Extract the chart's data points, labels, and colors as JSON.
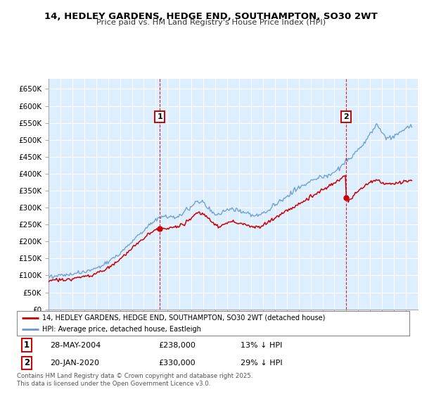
{
  "title": "14, HEDLEY GARDENS, HEDGE END, SOUTHAMPTON, SO30 2WT",
  "subtitle": "Price paid vs. HM Land Registry's House Price Index (HPI)",
  "ylim": [
    0,
    680000
  ],
  "yticks": [
    0,
    50000,
    100000,
    150000,
    200000,
    250000,
    300000,
    350000,
    400000,
    450000,
    500000,
    550000,
    600000,
    650000
  ],
  "ytick_labels": [
    "£0",
    "£50K",
    "£100K",
    "£150K",
    "£200K",
    "£250K",
    "£300K",
    "£350K",
    "£400K",
    "£450K",
    "£500K",
    "£550K",
    "£600K",
    "£650K"
  ],
  "background_color": "#ffffff",
  "plot_bg_color": "#ddeeff",
  "grid_color": "#c8d8e8",
  "red_color": "#cc0000",
  "blue_color": "#6699cc",
  "sale1_date": "28-MAY-2004",
  "sale1_price": "£238,000",
  "sale1_hpi": "13% ↓ HPI",
  "sale2_date": "20-JAN-2020",
  "sale2_price": "£330,000",
  "sale2_hpi": "29% ↓ HPI",
  "legend1": "14, HEDLEY GARDENS, HEDGE END, SOUTHAMPTON, SO30 2WT (detached house)",
  "legend2": "HPI: Average price, detached house, Eastleigh",
  "footnote": "Contains HM Land Registry data © Crown copyright and database right 2025.\nThis data is licensed under the Open Government Licence v3.0.",
  "xlim_start": 1995.0,
  "xlim_end": 2026.0,
  "hpi_keypoints": [
    [
      1995.0,
      97000
    ],
    [
      1996.0,
      100000
    ],
    [
      1997.0,
      103000
    ],
    [
      1998.0,
      110000
    ],
    [
      1999.0,
      120000
    ],
    [
      2000.0,
      140000
    ],
    [
      2001.0,
      165000
    ],
    [
      2002.0,
      200000
    ],
    [
      2003.0,
      235000
    ],
    [
      2004.0,
      265000
    ],
    [
      2004.5,
      275000
    ],
    [
      2005.0,
      272000
    ],
    [
      2005.5,
      270000
    ],
    [
      2006.0,
      278000
    ],
    [
      2006.5,
      288000
    ],
    [
      2007.0,
      305000
    ],
    [
      2007.5,
      320000
    ],
    [
      2008.0,
      315000
    ],
    [
      2008.5,
      295000
    ],
    [
      2009.0,
      278000
    ],
    [
      2009.5,
      285000
    ],
    [
      2010.0,
      292000
    ],
    [
      2010.5,
      295000
    ],
    [
      2011.0,
      290000
    ],
    [
      2011.5,
      285000
    ],
    [
      2012.0,
      280000
    ],
    [
      2012.5,
      278000
    ],
    [
      2013.0,
      282000
    ],
    [
      2013.5,
      292000
    ],
    [
      2014.0,
      308000
    ],
    [
      2014.5,
      322000
    ],
    [
      2015.0,
      335000
    ],
    [
      2015.5,
      345000
    ],
    [
      2016.0,
      358000
    ],
    [
      2016.5,
      368000
    ],
    [
      2017.0,
      378000
    ],
    [
      2017.5,
      385000
    ],
    [
      2018.0,
      390000
    ],
    [
      2018.5,
      395000
    ],
    [
      2019.0,
      405000
    ],
    [
      2019.5,
      420000
    ],
    [
      2020.0,
      440000
    ],
    [
      2020.3,
      445000
    ],
    [
      2020.5,
      450000
    ],
    [
      2021.0,
      468000
    ],
    [
      2021.5,
      490000
    ],
    [
      2022.0,
      515000
    ],
    [
      2022.3,
      535000
    ],
    [
      2022.6,
      545000
    ],
    [
      2022.9,
      530000
    ],
    [
      2023.2,
      510000
    ],
    [
      2023.5,
      505000
    ],
    [
      2024.0,
      510000
    ],
    [
      2024.5,
      520000
    ],
    [
      2025.0,
      535000
    ],
    [
      2025.4,
      540000
    ]
  ],
  "red_keypoints": [
    [
      1995.0,
      83000
    ],
    [
      1996.0,
      87000
    ],
    [
      1997.0,
      90000
    ],
    [
      1998.0,
      97000
    ],
    [
      1999.0,
      105000
    ],
    [
      2000.0,
      122000
    ],
    [
      2001.0,
      148000
    ],
    [
      2002.0,
      178000
    ],
    [
      2003.0,
      212000
    ],
    [
      2004.0,
      235000
    ],
    [
      2004.42,
      238000
    ],
    [
      2005.0,
      238000
    ],
    [
      2005.5,
      242000
    ],
    [
      2006.0,
      248000
    ],
    [
      2006.5,
      255000
    ],
    [
      2007.0,
      270000
    ],
    [
      2007.5,
      285000
    ],
    [
      2008.0,
      280000
    ],
    [
      2008.5,
      265000
    ],
    [
      2009.0,
      250000
    ],
    [
      2009.3,
      245000
    ],
    [
      2009.5,
      248000
    ],
    [
      2010.0,
      255000
    ],
    [
      2010.5,
      258000
    ],
    [
      2011.0,
      255000
    ],
    [
      2011.5,
      250000
    ],
    [
      2012.0,
      245000
    ],
    [
      2012.5,
      242000
    ],
    [
      2013.0,
      248000
    ],
    [
      2013.5,
      258000
    ],
    [
      2014.0,
      270000
    ],
    [
      2014.5,
      280000
    ],
    [
      2015.0,
      292000
    ],
    [
      2015.5,
      300000
    ],
    [
      2016.0,
      310000
    ],
    [
      2016.5,
      320000
    ],
    [
      2017.0,
      332000
    ],
    [
      2017.5,
      342000
    ],
    [
      2018.0,
      352000
    ],
    [
      2018.5,
      362000
    ],
    [
      2019.0,
      372000
    ],
    [
      2019.5,
      385000
    ],
    [
      2019.8,
      395000
    ],
    [
      2019.9,
      400000
    ],
    [
      2020.0,
      395000
    ],
    [
      2020.05,
      330000
    ],
    [
      2020.2,
      320000
    ],
    [
      2020.5,
      330000
    ],
    [
      2021.0,
      348000
    ],
    [
      2021.5,
      362000
    ],
    [
      2022.0,
      375000
    ],
    [
      2022.2,
      380000
    ],
    [
      2022.5,
      385000
    ],
    [
      2022.8,
      378000
    ],
    [
      2023.0,
      372000
    ],
    [
      2023.5,
      370000
    ],
    [
      2024.0,
      372000
    ],
    [
      2024.5,
      375000
    ],
    [
      2025.0,
      378000
    ],
    [
      2025.4,
      380000
    ]
  ]
}
